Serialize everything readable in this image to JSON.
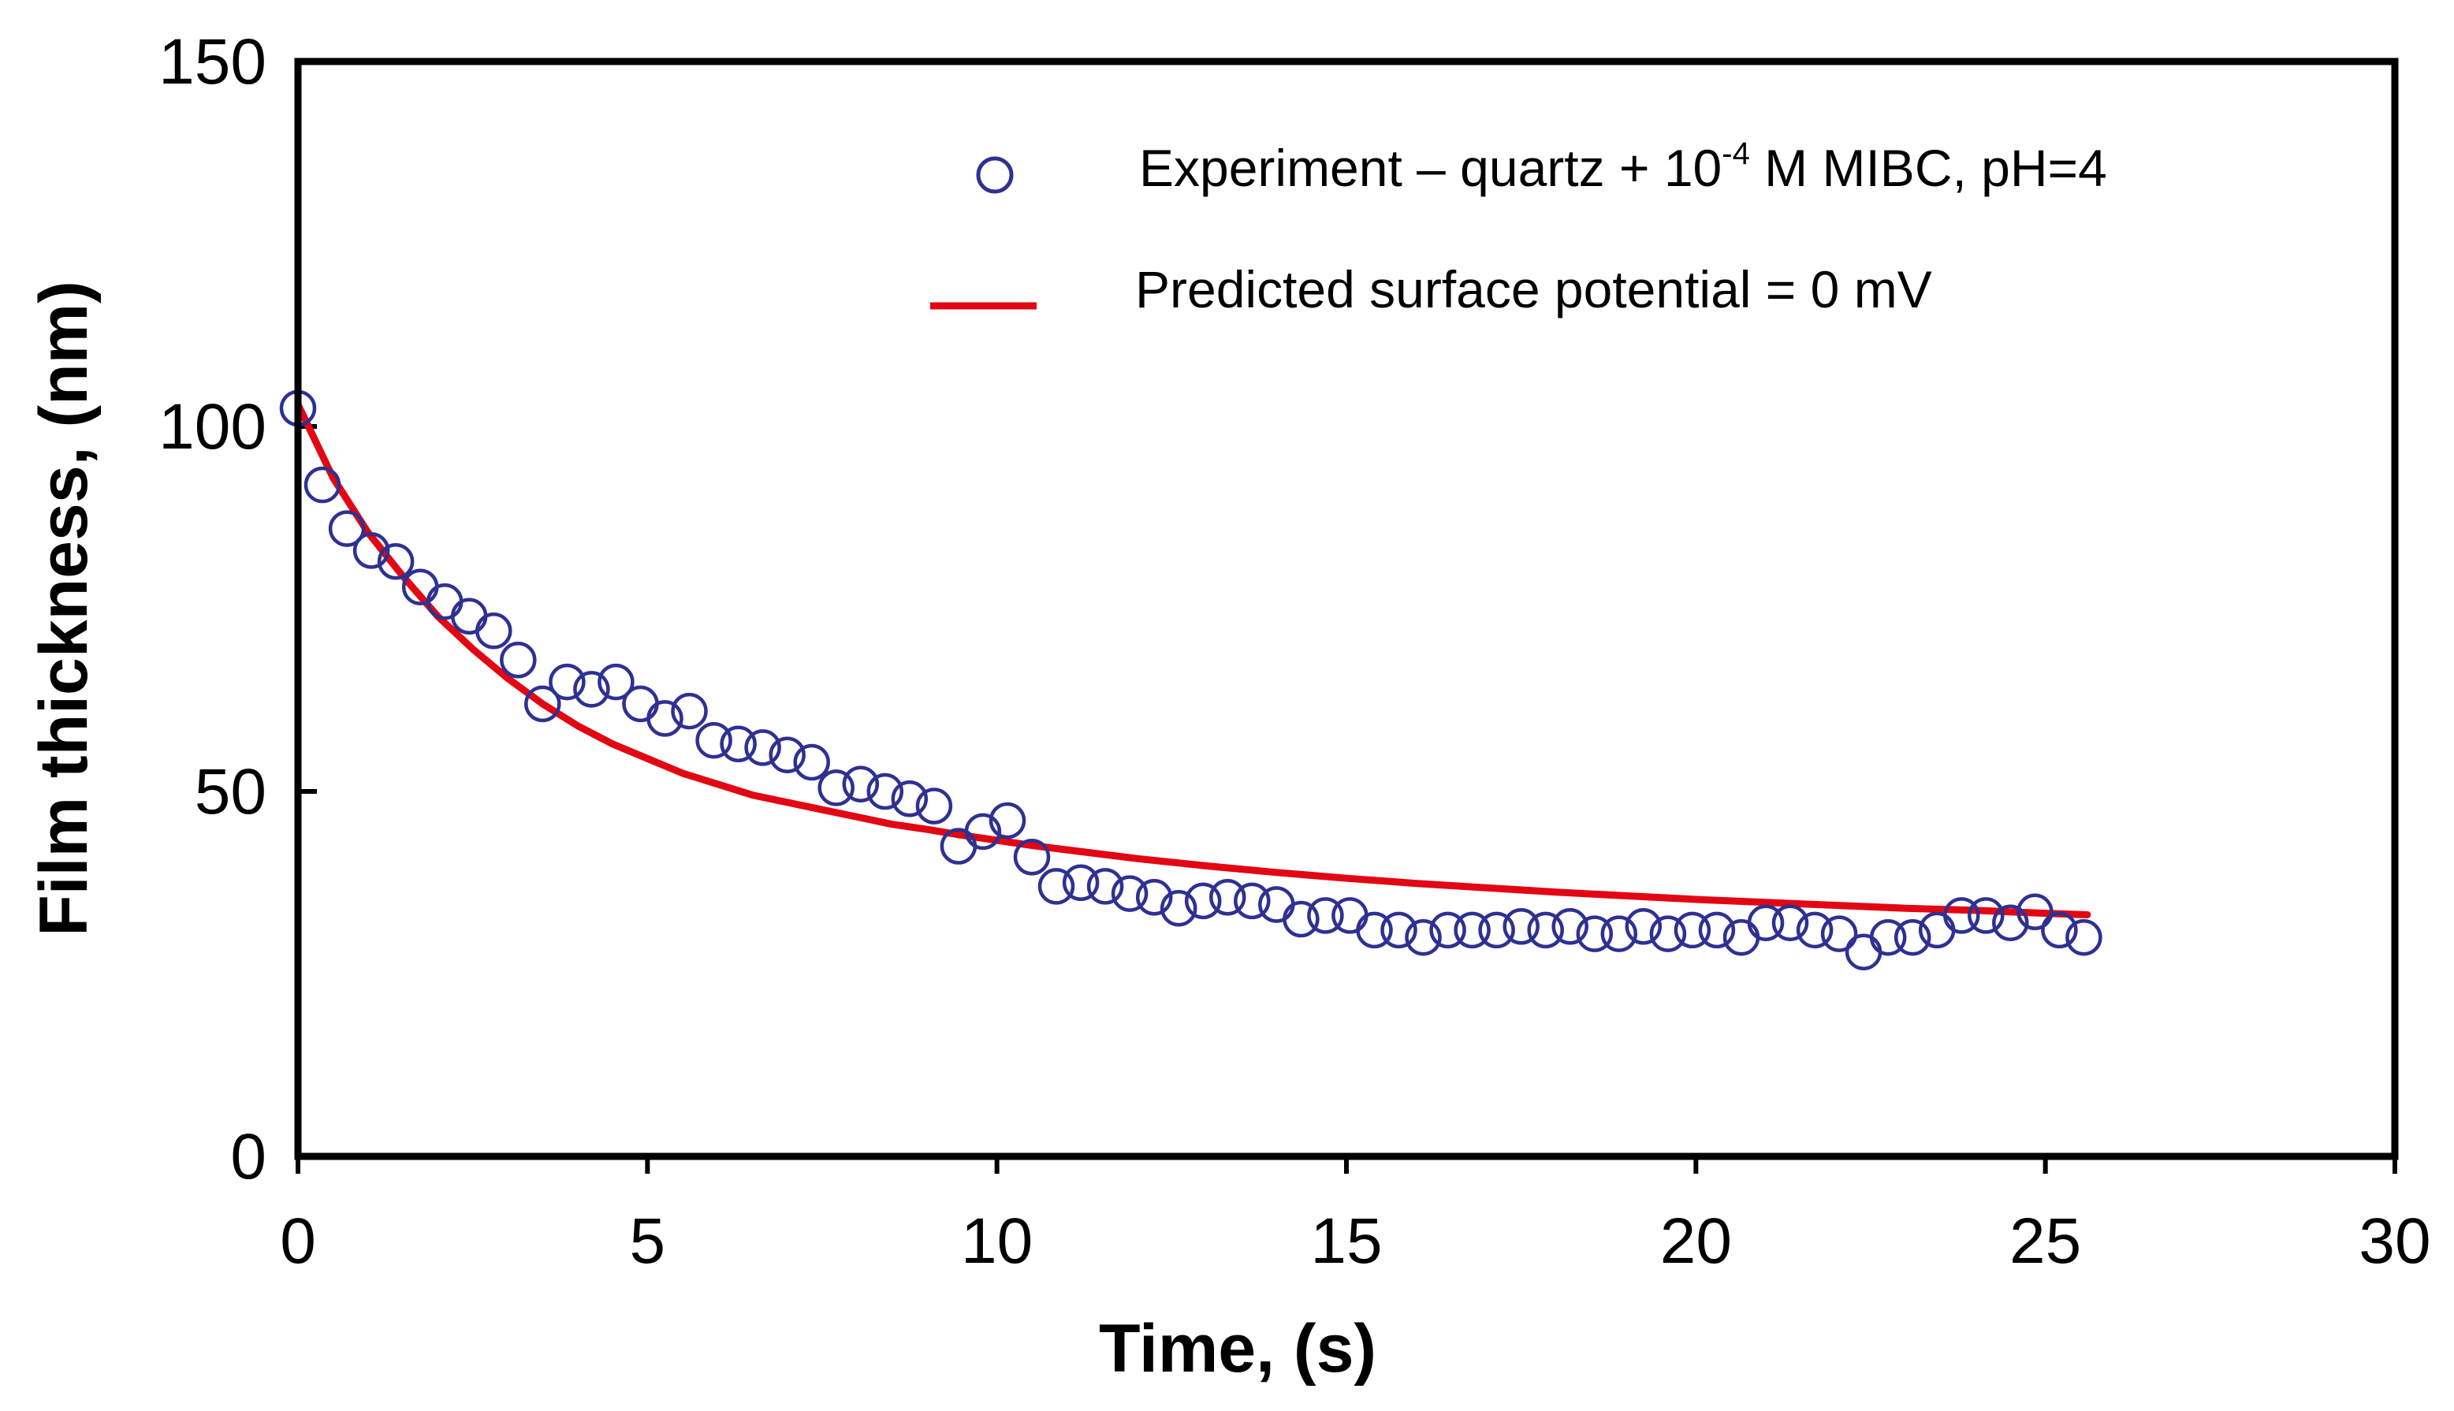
{
  "chart_data": {
    "type": "scatter",
    "xlabel": "Time, (s)",
    "ylabel": "Film thickness, (nm)",
    "xlim": [
      0,
      30
    ],
    "ylim": [
      0,
      150
    ],
    "xticks": [
      0,
      5,
      10,
      15,
      20,
      25,
      30
    ],
    "yticks": [
      0,
      50,
      100,
      150
    ],
    "grid": false,
    "legend_position": "top-right",
    "legend": {
      "experiment": {
        "prefix": "Experiment – quartz + 10",
        "sup": "-4",
        "suffix": " M MIBC, pH=4"
      },
      "predicted": "Predicted surface potential = 0 mV"
    },
    "colors": {
      "experiment_marker": "#2e3192",
      "predicted_line": "#e30613"
    },
    "series": [
      {
        "kind": "markers",
        "x": [
          0.0,
          0.35,
          0.7,
          1.05,
          1.4,
          1.75,
          2.1,
          2.45,
          2.8,
          3.15,
          3.5,
          3.85,
          4.2,
          4.55,
          4.9,
          5.25,
          5.6,
          5.95,
          6.3,
          6.65,
          7.0,
          7.35,
          7.7,
          8.05,
          8.4,
          8.75,
          9.1,
          9.45,
          9.8,
          10.15,
          10.5,
          10.85,
          11.2,
          11.55,
          11.9,
          12.25,
          12.6,
          12.95,
          13.3,
          13.65,
          14.0,
          14.35,
          14.7,
          15.05,
          15.4,
          15.75,
          16.1,
          16.45,
          16.8,
          17.15,
          17.5,
          17.85,
          18.2,
          18.55,
          18.9,
          19.25,
          19.6,
          19.95,
          20.3,
          20.65,
          21.0,
          21.35,
          21.7,
          22.05,
          22.4,
          22.75,
          23.1,
          23.45,
          23.8,
          24.15,
          24.5,
          24.85,
          25.2,
          25.55
        ],
        "y": [
          102.5,
          92.0,
          86.0,
          83.0,
          81.5,
          78.0,
          76.0,
          74.0,
          72.0,
          68.0,
          62.0,
          65.0,
          64.0,
          65.0,
          62.0,
          60.0,
          61.0,
          57.0,
          56.5,
          56.0,
          55.0,
          54.0,
          50.5,
          51.0,
          50.0,
          49.0,
          48.0,
          42.5,
          44.5,
          46.0,
          41.0,
          37.0,
          37.5,
          37.0,
          36.0,
          35.5,
          34.0,
          35.0,
          35.5,
          35.0,
          34.5,
          32.5,
          33.0,
          33.0,
          31.0,
          31.0,
          30.0,
          31.0,
          31.0,
          31.0,
          31.5,
          31.0,
          31.5,
          30.5,
          30.5,
          31.5,
          30.5,
          31.0,
          31.0,
          30.0,
          32.0,
          32.0,
          31.0,
          30.5,
          28.0,
          30.0,
          30.0,
          31.0,
          33.0,
          33.0,
          32.0,
          33.5,
          31.0,
          30.0
        ]
      },
      {
        "kind": "line",
        "x": [
          0.0,
          0.5,
          1.0,
          1.5,
          2.0,
          2.5,
          3.0,
          3.5,
          4.0,
          4.5,
          5.0,
          5.5,
          6.0,
          6.5,
          7.0,
          7.5,
          8.0,
          8.5,
          9.0,
          9.5,
          10.0,
          10.5,
          11.0,
          11.5,
          12.0,
          13.0,
          14.0,
          15.0,
          16.0,
          17.0,
          18.0,
          19.0,
          20.0,
          21.0,
          22.0,
          23.0,
          24.0,
          25.0,
          25.6
        ],
        "y": [
          103.0,
          93.0,
          85.5,
          79.5,
          74.0,
          69.5,
          65.5,
          62.0,
          59.0,
          56.5,
          54.5,
          52.5,
          51.0,
          49.5,
          48.5,
          47.5,
          46.5,
          45.5,
          44.8,
          44.0,
          43.3,
          42.6,
          42.0,
          41.4,
          40.8,
          39.8,
          38.9,
          38.1,
          37.4,
          36.8,
          36.2,
          35.7,
          35.2,
          34.8,
          34.4,
          34.0,
          33.7,
          33.3,
          33.1
        ]
      }
    ]
  }
}
